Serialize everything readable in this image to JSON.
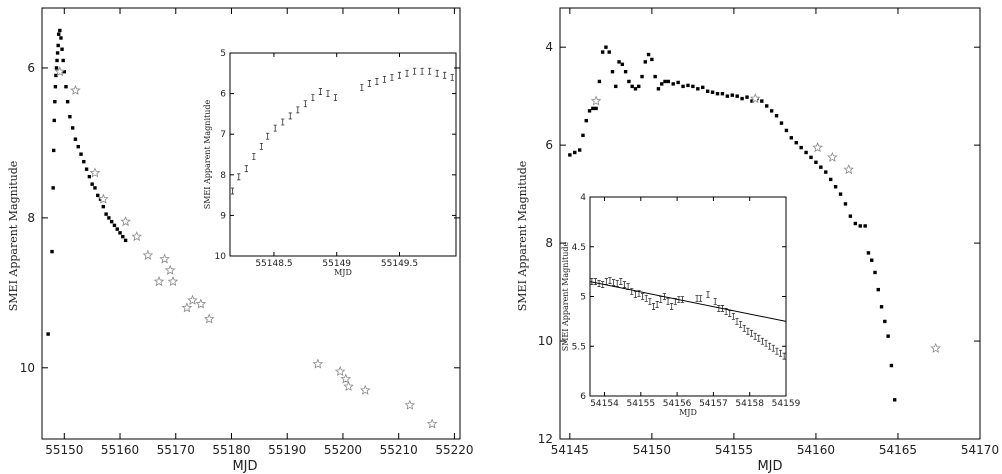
{
  "chart_data": [
    {
      "type": "scatter",
      "title": "",
      "xlabel": "MJD",
      "ylabel": "SMEI Apparent Magnitude",
      "xlim": [
        55146,
        55221
      ],
      "ylim": [
        5.2,
        10.95
      ],
      "y_inverted": true,
      "x_ticks": [
        55150,
        55160,
        55170,
        55180,
        55190,
        55200,
        55210,
        55220
      ],
      "y_ticks": [
        6,
        8,
        10
      ],
      "series": [
        {
          "marker": "square",
          "x": [
            55147.1,
            55147.8,
            55148.0,
            55148.1,
            55148.2,
            55148.3,
            55148.4,
            55148.5,
            55148.6,
            55148.7,
            55148.8,
            55148.9,
            55149.0,
            55149.2,
            55149.4,
            55149.6,
            55149.8,
            55150.0,
            55150.3,
            55150.6,
            55151.0,
            55151.5,
            55152.0,
            55152.5,
            55153.0,
            55153.5,
            55154.0,
            55154.5,
            55155.0,
            55155.5,
            55156.0,
            55156.5,
            55157.0,
            55157.5,
            55158.0,
            55158.5,
            55159.0,
            55159.5,
            55160.0,
            55160.5,
            55161.0
          ],
          "y": [
            9.55,
            8.45,
            7.6,
            7.1,
            6.7,
            6.45,
            6.25,
            6.1,
            6.0,
            5.9,
            5.8,
            5.7,
            5.55,
            5.5,
            5.6,
            5.75,
            5.9,
            6.05,
            6.25,
            6.45,
            6.65,
            6.8,
            6.95,
            7.05,
            7.15,
            7.25,
            7.35,
            7.45,
            7.55,
            7.6,
            7.7,
            7.75,
            7.85,
            7.95,
            8.0,
            8.05,
            8.1,
            8.15,
            8.2,
            8.25,
            8.3
          ]
        },
        {
          "marker": "star",
          "x": [
            55149.2,
            55152.0,
            55155.5,
            55157.0,
            55161.0,
            55163.0,
            55165.0,
            55167.0,
            55168.0,
            55169.0,
            55169.5,
            55172.0,
            55173.0,
            55174.5,
            55176.0,
            55195.5,
            55199.5,
            55200.5,
            55201.0,
            55204.0,
            55212.0,
            55216.0
          ],
          "y": [
            6.05,
            6.3,
            7.4,
            7.75,
            8.05,
            8.25,
            8.5,
            8.85,
            8.55,
            8.7,
            8.85,
            9.2,
            9.1,
            9.15,
            9.35,
            9.95,
            10.05,
            10.15,
            10.25,
            10.3,
            10.5,
            10.75
          ]
        }
      ],
      "inset": {
        "type": "scatter",
        "xlabel": "MJD",
        "ylabel": "SMEI Apparent Magnitude",
        "xlim": [
          55148.15,
          55149.95
        ],
        "ylim": [
          5,
          10
        ],
        "y_inverted": true,
        "x_ticks": [
          55148.5,
          55149,
          55149.5
        ],
        "y_ticks": [
          5,
          6,
          7,
          8,
          9,
          10
        ],
        "x": [
          55148.17,
          55148.22,
          55148.28,
          55148.34,
          55148.4,
          55148.45,
          55148.51,
          55148.57,
          55148.63,
          55148.69,
          55148.75,
          55148.81,
          55148.87,
          55148.93,
          55148.99,
          55149.2,
          55149.26,
          55149.32,
          55149.38,
          55149.44,
          55149.5,
          55149.56,
          55149.62,
          55149.68,
          55149.74,
          55149.8,
          55149.86,
          55149.92
        ],
        "y": [
          8.4,
          8.05,
          7.85,
          7.55,
          7.3,
          7.05,
          6.85,
          6.7,
          6.55,
          6.4,
          6.25,
          6.1,
          5.95,
          6.0,
          6.1,
          5.85,
          5.75,
          5.7,
          5.65,
          5.6,
          5.55,
          5.5,
          5.45,
          5.45,
          5.45,
          5.5,
          5.55,
          5.6
        ]
      }
    },
    {
      "type": "scatter",
      "title": "",
      "xlabel": "MJD",
      "ylabel": "SMEI Apparent Magnitude",
      "xlim": [
        54144.4,
        54170
      ],
      "ylim": [
        3.2,
        12
      ],
      "y_inverted": true,
      "x_ticks": [
        54145,
        54150,
        54155,
        54160,
        54165,
        54170
      ],
      "y_ticks": [
        4,
        6,
        8,
        10,
        12
      ],
      "series": [
        {
          "marker": "square",
          "x": [
            54145.0,
            54145.3,
            54145.6,
            54145.8,
            54146.0,
            54146.2,
            54146.4,
            54146.6,
            54146.8,
            54147.0,
            54147.2,
            54147.4,
            54147.6,
            54147.8,
            54148.0,
            54148.2,
            54148.4,
            54148.6,
            54148.8,
            54149.0,
            54149.2,
            54149.4,
            54149.6,
            54149.8,
            54150.0,
            54150.2,
            54150.4,
            54150.6,
            54150.8,
            54151.0,
            54151.3,
            54151.6,
            54151.9,
            54152.2,
            54152.5,
            54152.8,
            54153.1,
            54153.4,
            54153.7,
            54154.0,
            54154.3,
            54154.6,
            54154.9,
            54155.2,
            54155.5,
            54155.8,
            54156.1,
            54156.4,
            54156.7,
            54157.0,
            54157.3,
            54157.6,
            54157.9,
            54158.2,
            54158.5,
            54158.8,
            54159.1,
            54159.4,
            54159.7,
            54160.0,
            54160.3,
            54160.6,
            54160.9,
            54161.2,
            54161.5,
            54161.8,
            54162.1,
            54162.4,
            54162.7,
            54163.0,
            54163.2,
            54163.4,
            54163.6,
            54163.8,
            54164.0,
            54164.2,
            54164.4,
            54164.6,
            54164.8
          ],
          "y": [
            6.2,
            6.15,
            6.1,
            5.8,
            5.5,
            5.3,
            5.25,
            5.25,
            4.7,
            4.1,
            4.0,
            4.1,
            4.5,
            4.8,
            4.3,
            4.35,
            4.5,
            4.7,
            4.8,
            4.85,
            4.8,
            4.6,
            4.3,
            4.15,
            4.25,
            4.6,
            4.85,
            4.75,
            4.7,
            4.7,
            4.75,
            4.72,
            4.8,
            4.78,
            4.8,
            4.85,
            4.82,
            4.9,
            4.92,
            4.95,
            4.95,
            5.0,
            4.98,
            5.0,
            5.05,
            5.02,
            5.1,
            5.05,
            5.1,
            5.2,
            5.3,
            5.4,
            5.55,
            5.7,
            5.85,
            5.95,
            6.05,
            6.15,
            6.25,
            6.35,
            6.45,
            6.55,
            6.7,
            6.85,
            7.0,
            7.2,
            7.45,
            7.6,
            7.65,
            7.65,
            8.2,
            8.35,
            8.6,
            8.95,
            9.3,
            9.6,
            9.9,
            10.5,
            11.2
          ]
        },
        {
          "marker": "star",
          "x": [
            54146.6,
            54156.3,
            54160.1,
            54161.0,
            54162.0,
            54167.3
          ],
          "y": [
            5.1,
            5.05,
            6.05,
            6.25,
            6.5,
            10.15
          ]
        }
      ],
      "inset": {
        "type": "scatter",
        "xlabel": "MJD",
        "ylabel": "SMEI Apparent Magnitude",
        "xlim": [
          54153.6,
          54159
        ],
        "ylim": [
          4,
          6
        ],
        "y_inverted": true,
        "x_ticks": [
          54154,
          54155,
          54156,
          54157,
          54158,
          54159
        ],
        "y_ticks": [
          4,
          4.5,
          5,
          5.5,
          6
        ],
        "x": [
          54153.65,
          54153.75,
          54153.85,
          54153.95,
          54154.05,
          54154.15,
          54154.25,
          54154.35,
          54154.45,
          54154.55,
          54154.65,
          54154.75,
          54154.85,
          54154.95,
          54155.05,
          54155.15,
          54155.25,
          54155.35,
          54155.45,
          54155.55,
          54155.65,
          54155.75,
          54155.85,
          54155.95,
          54156.05,
          54156.15,
          54156.55,
          54156.65,
          54156.85,
          54157.05,
          54157.15,
          54157.25,
          54157.35,
          54157.45,
          54157.55,
          54157.65,
          54157.75,
          54157.85,
          54157.95,
          54158.05,
          54158.15,
          54158.25,
          54158.35,
          54158.45,
          54158.55,
          54158.65,
          54158.75,
          54158.85,
          54158.95
        ],
        "y": [
          4.85,
          4.85,
          4.87,
          4.88,
          4.85,
          4.84,
          4.86,
          4.87,
          4.85,
          4.88,
          4.9,
          4.95,
          4.98,
          4.97,
          5.0,
          5.02,
          5.05,
          5.1,
          5.08,
          5.03,
          5.0,
          5.05,
          5.1,
          5.05,
          5.03,
          5.03,
          5.02,
          5.02,
          4.98,
          5.05,
          5.12,
          5.12,
          5.15,
          5.17,
          5.2,
          5.25,
          5.28,
          5.32,
          5.35,
          5.37,
          5.4,
          5.42,
          5.45,
          5.47,
          5.5,
          5.52,
          5.55,
          5.57,
          5.6
        ],
        "fit_line": {
          "x": [
            54153.6,
            54159.0
          ],
          "y": [
            4.85,
            5.25
          ]
        }
      }
    }
  ]
}
